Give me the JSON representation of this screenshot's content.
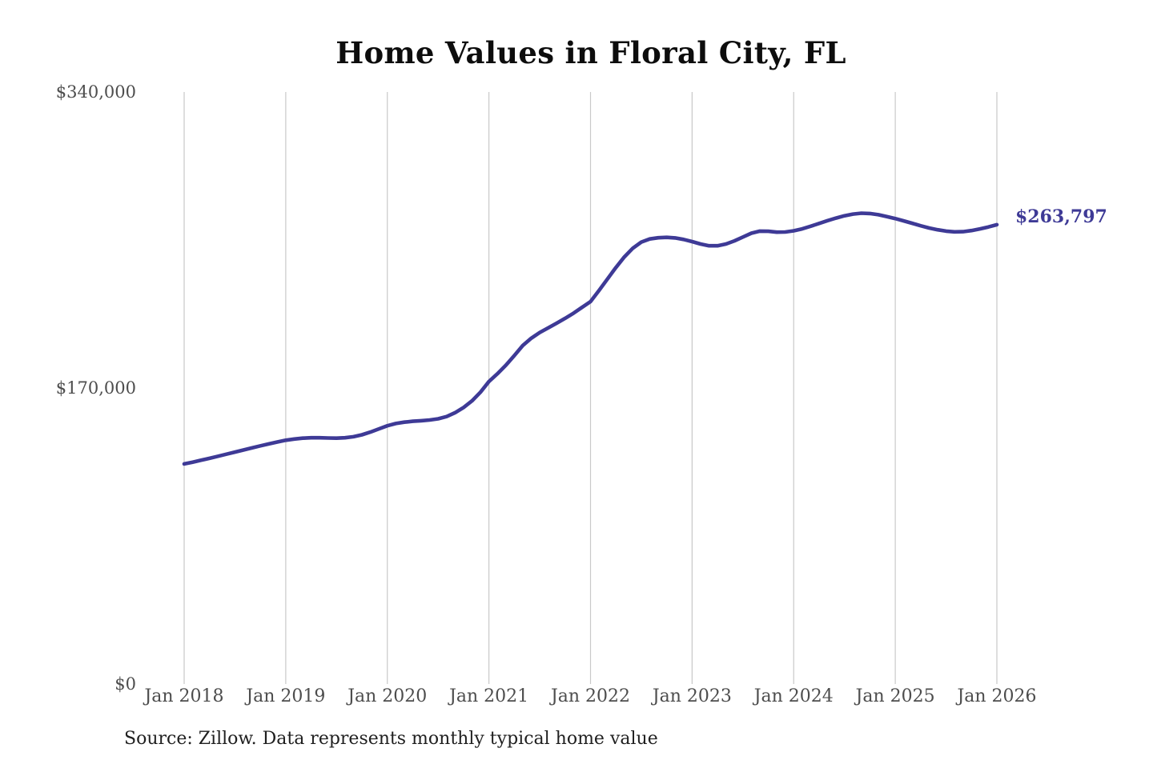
{
  "title": "Home Values in Floral City, FL",
  "end_label": "$263,797",
  "source_note": "Source: Zillow. Data represents monthly typical home value",
  "colors": {
    "line": "#3e3a96",
    "end_label": "#3e3a96",
    "grid": "#c9c9c9",
    "axis_text": "#4d4d4d",
    "title_text": "#0d0d0d",
    "source_text": "#1f1f1f",
    "background": "#ffffff"
  },
  "y_axis": {
    "labels": [
      "$340,000",
      "$170,000",
      "$0"
    ],
    "values": [
      340000,
      170000,
      0
    ],
    "min": 0,
    "max": 340000
  },
  "x_axis": {
    "ticks": [
      "Jan 2018",
      "Jan 2019",
      "Jan 2020",
      "Jan 2021",
      "Jan 2022",
      "Jan 2023",
      "Jan 2024",
      "Jan 2025",
      "Jan 2026"
    ]
  },
  "chart_data": {
    "type": "line",
    "title": "Home Values in Floral City, FL",
    "series_name": "Monthly typical home value",
    "xlabel": "",
    "ylabel": "",
    "ylim": [
      0,
      340000
    ],
    "grid": "vertical-only",
    "legend": "none",
    "last_value": 263797,
    "last_value_label": "$263,797",
    "x": [
      "2018-01",
      "2018-02",
      "2018-03",
      "2018-04",
      "2018-05",
      "2018-06",
      "2018-07",
      "2018-08",
      "2018-09",
      "2018-10",
      "2018-11",
      "2018-12",
      "2019-01",
      "2019-02",
      "2019-03",
      "2019-04",
      "2019-05",
      "2019-06",
      "2019-07",
      "2019-08",
      "2019-09",
      "2019-10",
      "2019-11",
      "2019-12",
      "2020-01",
      "2020-02",
      "2020-03",
      "2020-04",
      "2020-05",
      "2020-06",
      "2020-07",
      "2020-08",
      "2020-09",
      "2020-10",
      "2020-11",
      "2020-12",
      "2021-01",
      "2021-02",
      "2021-03",
      "2021-04",
      "2021-05",
      "2021-06",
      "2021-07",
      "2021-08",
      "2021-09",
      "2021-10",
      "2021-11",
      "2021-12",
      "2022-01",
      "2022-02",
      "2022-03",
      "2022-04",
      "2022-05",
      "2022-06",
      "2022-07",
      "2022-08",
      "2022-09",
      "2022-10",
      "2022-11",
      "2022-12",
      "2023-01",
      "2023-02",
      "2023-03",
      "2023-04",
      "2023-05",
      "2023-06",
      "2023-07",
      "2023-08",
      "2023-09",
      "2023-10",
      "2023-11",
      "2023-12",
      "2024-01",
      "2024-02",
      "2024-03",
      "2024-04",
      "2024-05",
      "2024-06",
      "2024-07",
      "2024-08",
      "2024-09",
      "2024-10",
      "2024-11",
      "2024-12",
      "2025-01",
      "2025-02",
      "2025-03",
      "2025-04",
      "2025-05",
      "2025-06",
      "2025-07",
      "2025-08",
      "2025-09",
      "2025-10",
      "2025-11",
      "2025-12",
      "2026-01"
    ],
    "values": [
      126400,
      127400,
      128500,
      129600,
      130800,
      132000,
      133200,
      134400,
      135600,
      136800,
      137900,
      139000,
      140000,
      140700,
      141200,
      141400,
      141400,
      141300,
      141200,
      141400,
      142000,
      143100,
      144700,
      146500,
      148300,
      149600,
      150400,
      150900,
      151200,
      151600,
      152300,
      153600,
      155800,
      158800,
      162600,
      167600,
      173700,
      178200,
      183100,
      188600,
      194400,
      198600,
      201900,
      204500,
      207200,
      210000,
      213000,
      216300,
      219600,
      226000,
      232600,
      239200,
      245300,
      250300,
      253800,
      255600,
      256300,
      256500,
      256200,
      255300,
      254100,
      252700,
      251700,
      251700,
      252700,
      254500,
      256700,
      258900,
      260100,
      260000,
      259500,
      259600,
      260300,
      261400,
      262900,
      264500,
      266100,
      267600,
      268900,
      269900,
      270400,
      270200,
      269500,
      268400,
      267300,
      266000,
      264600,
      263200,
      261900,
      260900,
      260100,
      259700,
      259800,
      260400,
      261400,
      262500,
      263797
    ]
  }
}
